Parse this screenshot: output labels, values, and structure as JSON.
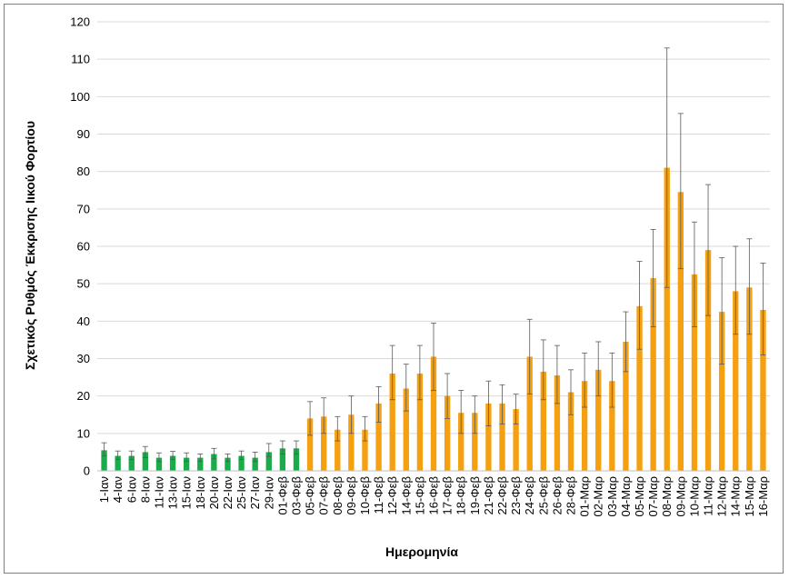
{
  "chart_data": {
    "type": "bar",
    "xlabel": "Ημερομηνία",
    "ylabel": "Σχετικός Ρυθμός Έκκρισης Ιικού Φορτίου",
    "ylim": [
      0,
      120
    ],
    "yticks": [
      0,
      10,
      20,
      30,
      40,
      50,
      60,
      70,
      80,
      90,
      100,
      110,
      120
    ],
    "grid": "horizontal",
    "colors": {
      "january": "#1aab4b",
      "later": "#f5a011",
      "error_bar": "#595959"
    },
    "categories": [
      "1-Ιαν",
      "4-Ιαν",
      "6-Ιαν",
      "8-Ιαν",
      "11-Ιαν",
      "13-Ιαν",
      "15-Ιαν",
      "18-Ιαν",
      "20-Ιαν",
      "22-Ιαν",
      "25-Ιαν",
      "27-Ιαν",
      "29-Ιαν",
      "01-Φεβ",
      "03-Φεβ",
      "05-Φεβ",
      "07-Φεβ",
      "08-Φεβ",
      "09-Φεβ",
      "10-Φεβ",
      "11-Φεβ",
      "12-Φεβ",
      "14-Φεβ",
      "15-Φεβ",
      "16-Φεβ",
      "17-Φεβ",
      "18-Φεβ",
      "19-Φεβ",
      "21-Φεβ",
      "22-Φεβ",
      "23-Φεβ",
      "24-Φεβ",
      "25-Φεβ",
      "26-Φεβ",
      "28-Φεβ",
      "01-Μαρ",
      "02-Μαρ",
      "03-Μαρ",
      "04-Μαρ",
      "05-Μαρ",
      "07-Μαρ",
      "08-Μαρ",
      "09-Μαρ",
      "10-Μαρ",
      "11-Μαρ",
      "12-Μαρ",
      "14-Μαρ",
      "15-Μαρ",
      "16-Μαρ"
    ],
    "values": [
      5.5,
      4,
      4,
      5,
      3.5,
      4,
      3.5,
      3.5,
      4.5,
      3.5,
      4,
      3.5,
      5,
      6,
      6,
      14,
      14.5,
      11,
      15,
      11,
      18,
      26,
      22,
      26,
      30.5,
      20,
      15.5,
      15.5,
      18,
      18,
      16.5,
      30.5,
      26.5,
      25.5,
      21,
      24,
      27,
      24,
      34.5,
      44,
      51.5,
      81,
      74.5,
      52.5,
      59,
      42.5,
      48,
      49,
      43
    ],
    "error_low": [
      4,
      3,
      3,
      3.5,
      2.5,
      3,
      2.5,
      2.5,
      3.2,
      2.5,
      3,
      2.5,
      3.8,
      4.5,
      4.5,
      9.5,
      10,
      8,
      10,
      8,
      13,
      19,
      16,
      19,
      21.5,
      14,
      10,
      10,
      12,
      12.5,
      12.5,
      20.5,
      19,
      18,
      15,
      17,
      20,
      17,
      26.5,
      32.5,
      38.5,
      49,
      54,
      38.5,
      41.5,
      28.5,
      36.5,
      36.5,
      31
    ],
    "error_high": [
      7.5,
      5.3,
      5.3,
      6.5,
      4.8,
      5.2,
      4.8,
      4.5,
      6,
      4.5,
      5.3,
      5,
      7.3,
      8,
      8,
      18.5,
      19.5,
      14.5,
      20,
      14.5,
      22.5,
      33.5,
      28.5,
      33.5,
      39.5,
      26,
      21.5,
      20,
      24,
      23,
      20.5,
      40.5,
      35,
      33.5,
      27,
      31.5,
      34.5,
      31.5,
      42.5,
      56,
      64.5,
      113,
      95.5,
      66.5,
      76.5,
      57,
      60,
      62,
      55.5
    ],
    "green_count": 15
  }
}
